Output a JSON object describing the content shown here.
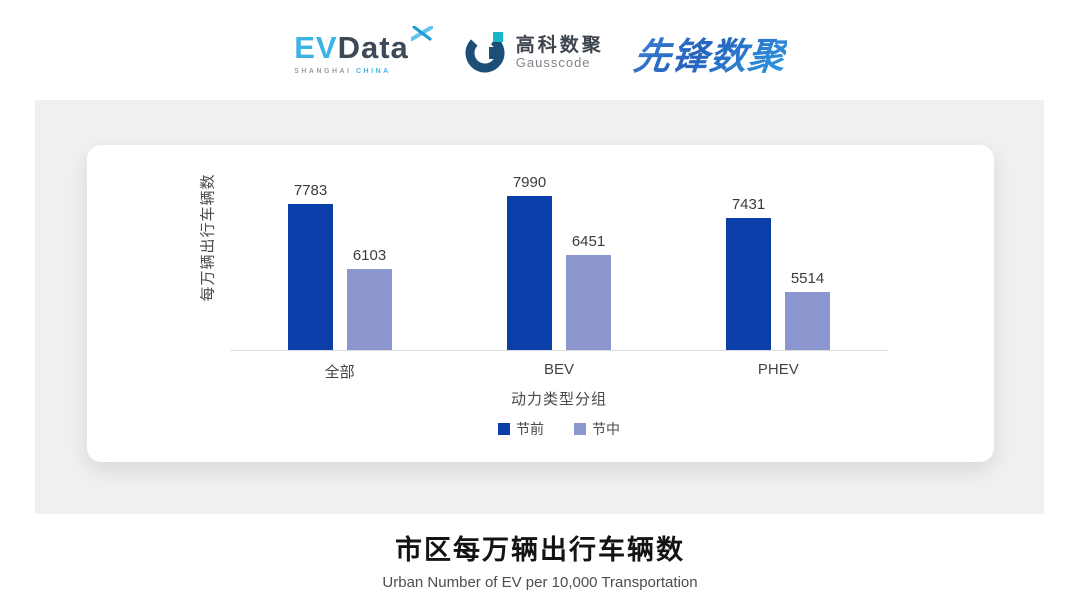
{
  "header": {
    "evdata": {
      "word_ev": "EV",
      "word_data": "Data",
      "sub_left": "SHANGHAI",
      "sub_right": "CHINA",
      "color_light": "#3bb3e4",
      "color_dark": "#3d4a57"
    },
    "gausscode": {
      "name_cn": "高科数聚",
      "name_en": "Gausscode",
      "mark_ring_color": "#1d4e78",
      "mark_accent_color": "#18b7c6"
    },
    "pioneer": {
      "text": "先锋数聚",
      "color": "#2f72cc"
    }
  },
  "chart_data": {
    "type": "bar",
    "title": "市区每万辆出行车辆数",
    "categories": [
      "全部",
      "BEV",
      "PHEV"
    ],
    "series": [
      {
        "name": "节前",
        "color": "#0B3EA9",
        "values": [
          7783,
          7990,
          7431
        ]
      },
      {
        "name": "节中",
        "color": "#8B96CE",
        "values": [
          6103,
          6451,
          5514
        ]
      }
    ],
    "xlabel": "动力类型分组",
    "ylabel": "每万辆出行车辆数",
    "ylim": [
      4000,
      8200
    ],
    "grid": false,
    "legend_position": "bottom",
    "value_labels": true,
    "axis_line_color": "#dcdcdc"
  },
  "footer": {
    "title": "市区每万辆出行车辆数",
    "subtitle": "Urban Number of EV per 10,000 Transportation"
  }
}
